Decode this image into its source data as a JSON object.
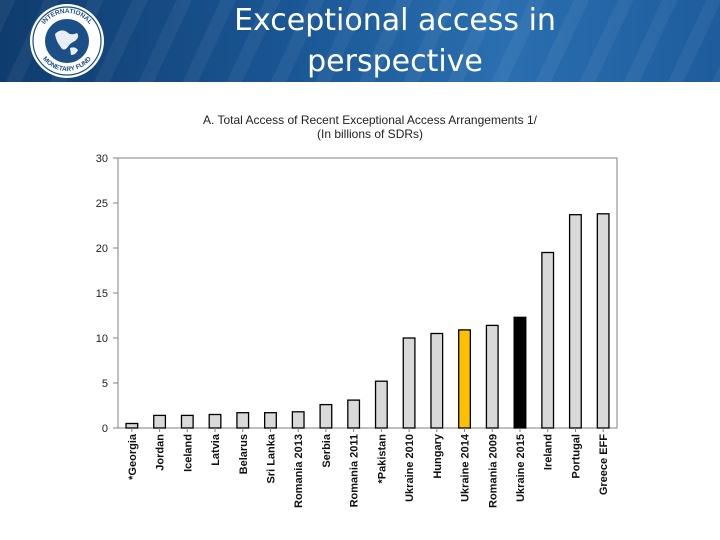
{
  "slide": {
    "title_line1": "Exceptional access in",
    "title_line2": "perspective",
    "logo_ring_top": "INTERNATIONAL",
    "logo_ring_bottom": "MONETARY FUND"
  },
  "colors": {
    "bar_default": "#d9d9d9",
    "bar_highlight": "#ffc000",
    "bar_dark": "#000000",
    "axis": "#808080"
  },
  "chart_data": {
    "type": "bar",
    "title": "A. Total Access of Recent Exceptional Access Arrangements 1/",
    "subtitle": "(In billions of SDRs)",
    "xlabel": "",
    "ylabel": "",
    "ylim": [
      0,
      30
    ],
    "yticks": [
      0,
      5,
      10,
      15,
      20,
      25,
      30
    ],
    "grid": false,
    "categories": [
      "*Georgia",
      "Jordan",
      "Iceland",
      "Latvia",
      "Belarus",
      "Sri Lanka",
      "Romania 2013",
      "Serbia",
      "Romania 2011",
      "*Pakistan",
      "Ukraine 2010",
      "Hungary",
      "Ukraine 2014",
      "Romania 2009",
      "Ukraine 2015",
      "Ireland",
      "Portugal",
      "Greece EFF"
    ],
    "values": [
      0.5,
      1.4,
      1.4,
      1.5,
      1.7,
      1.7,
      1.8,
      2.6,
      3.1,
      5.2,
      10.0,
      10.5,
      10.9,
      11.4,
      12.3,
      19.5,
      23.7,
      23.8
    ],
    "highlight": {
      "Ukraine 2014": "bar_highlight",
      "Ukraine 2015": "bar_dark"
    }
  }
}
